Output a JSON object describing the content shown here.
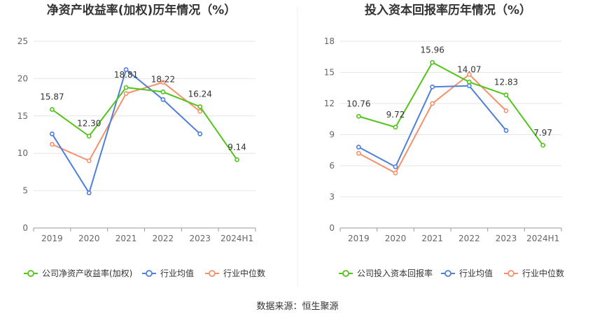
{
  "source": "数据来源：恒生聚源",
  "chart_data": [
    {
      "type": "line",
      "title": "净资产收益率(加权)历年情况（%）",
      "categories": [
        "2019",
        "2020",
        "2021",
        "2022",
        "2023",
        "2024H1"
      ],
      "ylim": [
        0,
        25
      ],
      "yticks": [
        0,
        5,
        10,
        15,
        20,
        25
      ],
      "grid": true,
      "legend_position": "bottom",
      "series": [
        {
          "name": "公司净资产收益率(加权)",
          "color": "#52c41a",
          "values": [
            15.87,
            12.3,
            18.81,
            18.22,
            16.24,
            9.14
          ],
          "labels": [
            "15.87",
            "12.30",
            "18.81",
            "18.22",
            "16.24",
            "9.14"
          ]
        },
        {
          "name": "行业均值",
          "color": "#4e7fd9",
          "values": [
            12.6,
            4.7,
            21.2,
            17.2,
            12.6,
            null
          ]
        },
        {
          "name": "行业中位数",
          "color": "#f4916a",
          "values": [
            11.2,
            9.0,
            18.0,
            19.5,
            15.6,
            null
          ]
        }
      ]
    },
    {
      "type": "line",
      "title": "投入资本回报率历年情况（%）",
      "categories": [
        "2019",
        "2020",
        "2021",
        "2022",
        "2023",
        "2024H1"
      ],
      "ylim": [
        0,
        18
      ],
      "yticks": [
        0,
        3,
        6,
        9,
        12,
        15,
        18
      ],
      "grid": true,
      "legend_position": "bottom",
      "series": [
        {
          "name": "公司投入资本回报率",
          "color": "#52c41a",
          "values": [
            10.76,
            9.72,
            15.96,
            14.07,
            12.83,
            7.97
          ],
          "labels": [
            "10.76",
            "9.72",
            "15.96",
            "14.07",
            "12.83",
            "7.97"
          ]
        },
        {
          "name": "行业均值",
          "color": "#4e7fd9",
          "values": [
            7.8,
            5.9,
            13.6,
            13.7,
            9.4,
            null
          ]
        },
        {
          "name": "行业中位数",
          "color": "#f4916a",
          "values": [
            7.2,
            5.3,
            12.0,
            14.8,
            11.3,
            null
          ]
        }
      ]
    }
  ]
}
